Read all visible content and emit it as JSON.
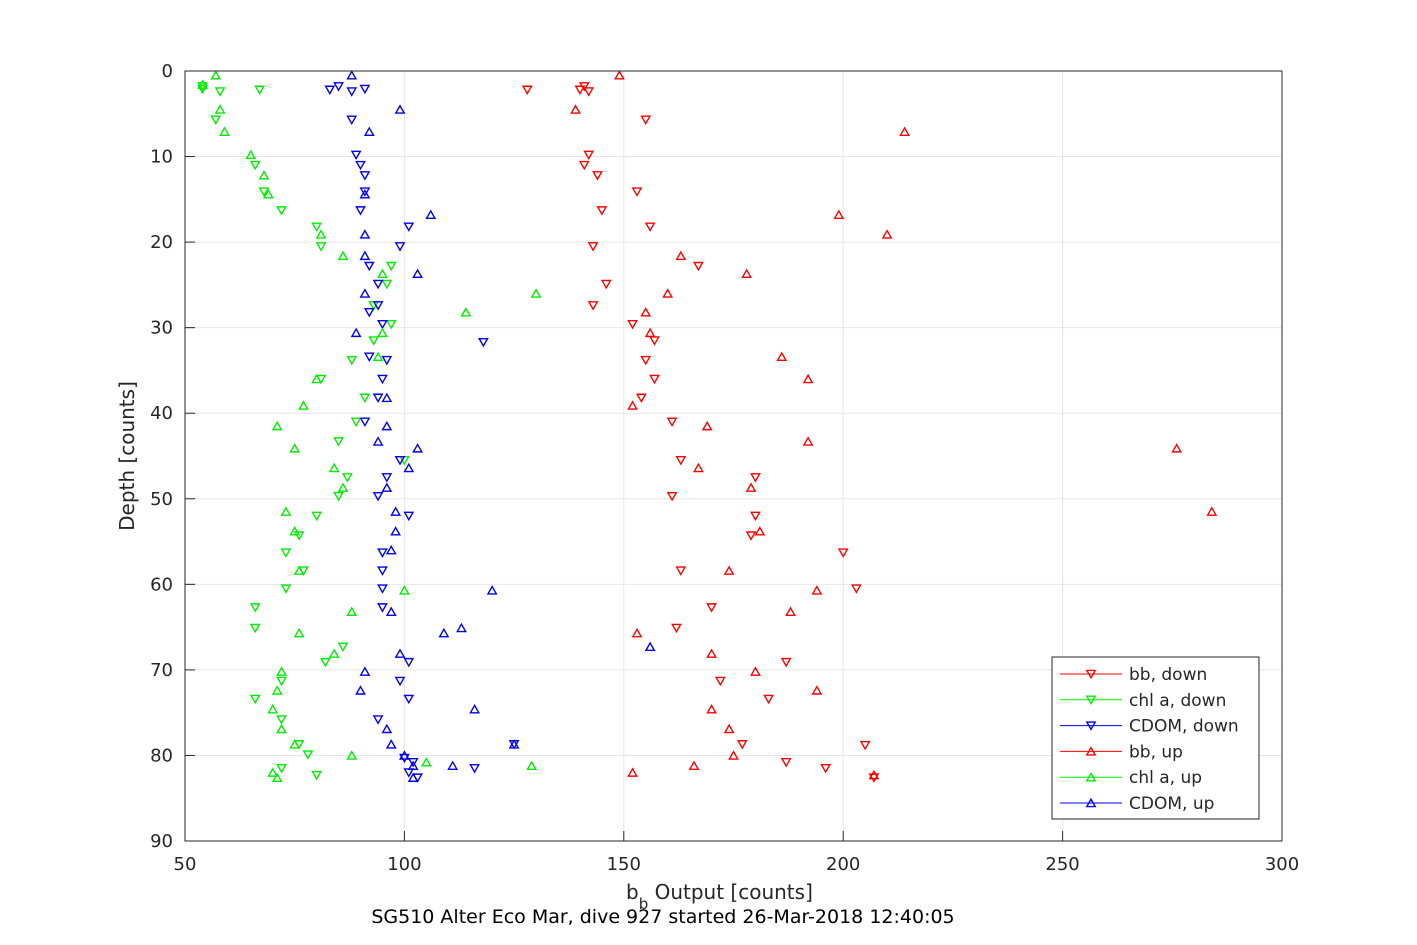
{
  "chart_data": {
    "type": "scatter",
    "title": "",
    "xlabel_main": "b",
    "xlabel_sub": "b",
    "xlabel_rest": " Output [counts]",
    "ylabel": "Depth [counts]",
    "caption": "SG510 Alter Eco Mar, dive 927 started 26-Mar-2018 12:40:05",
    "xlim": [
      50,
      300
    ],
    "ylim": [
      0,
      90
    ],
    "y_reversed": true,
    "grid": true,
    "legend_position": "bottom-right",
    "x_ticks": [
      50,
      100,
      150,
      200,
      250,
      300
    ],
    "y_ticks": [
      0,
      10,
      20,
      30,
      40,
      50,
      60,
      70,
      80,
      90
    ],
    "series": [
      {
        "name": "bb, down",
        "color": "#ff0000",
        "marker": "triangle-down",
        "points": [
          [
            141,
            1.8
          ],
          [
            128,
            2.2
          ],
          [
            142,
            2.4
          ],
          [
            140,
            2.2
          ],
          [
            155,
            5.7
          ],
          [
            142,
            9.8
          ],
          [
            141,
            11.0
          ],
          [
            144,
            12.2
          ],
          [
            153,
            14.1
          ],
          [
            145,
            16.3
          ],
          [
            156,
            18.2
          ],
          [
            143,
            20.5
          ],
          [
            167,
            22.8
          ],
          [
            146,
            24.9
          ],
          [
            143,
            27.4
          ],
          [
            152,
            29.6
          ],
          [
            157,
            31.5
          ],
          [
            155,
            33.8
          ],
          [
            157,
            36.0
          ],
          [
            154,
            38.2
          ],
          [
            161,
            41.0
          ],
          [
            163,
            45.5
          ],
          [
            180,
            47.5
          ],
          [
            161,
            49.7
          ],
          [
            180,
            52.0
          ],
          [
            179,
            54.3
          ],
          [
            200,
            56.3
          ],
          [
            163,
            58.4
          ],
          [
            203,
            60.5
          ],
          [
            170,
            62.7
          ],
          [
            162,
            65.1
          ],
          [
            187,
            69.1
          ],
          [
            172,
            71.3
          ],
          [
            183,
            73.4
          ],
          [
            177,
            78.7
          ],
          [
            205,
            78.8
          ],
          [
            187,
            80.8
          ],
          [
            196,
            81.5
          ],
          [
            207,
            82.6
          ]
        ]
      },
      {
        "name": "chl a, down",
        "color": "#00ee00",
        "marker": "triangle-down",
        "points": [
          [
            54,
            1.8
          ],
          [
            67,
            2.2
          ],
          [
            58,
            2.4
          ],
          [
            54,
            2.1
          ],
          [
            57,
            5.7
          ],
          [
            66,
            11.0
          ],
          [
            68,
            14.1
          ],
          [
            72,
            16.3
          ],
          [
            80,
            18.2
          ],
          [
            81,
            20.5
          ],
          [
            97,
            22.8
          ],
          [
            96,
            24.9
          ],
          [
            93,
            27.4
          ],
          [
            97,
            29.6
          ],
          [
            93,
            31.5
          ],
          [
            88,
            33.8
          ],
          [
            81,
            36.0
          ],
          [
            91,
            38.2
          ],
          [
            89,
            41.0
          ],
          [
            85,
            43.3
          ],
          [
            100,
            45.5
          ],
          [
            87,
            47.5
          ],
          [
            85,
            49.7
          ],
          [
            80,
            52.0
          ],
          [
            76,
            54.3
          ],
          [
            73,
            56.3
          ],
          [
            77,
            58.4
          ],
          [
            73,
            60.5
          ],
          [
            66,
            62.7
          ],
          [
            66,
            65.1
          ],
          [
            86,
            67.3
          ],
          [
            82,
            69.1
          ],
          [
            72,
            71.3
          ],
          [
            66,
            73.4
          ],
          [
            72,
            75.8
          ],
          [
            76,
            78.7
          ],
          [
            78,
            79.9
          ],
          [
            72,
            81.5
          ],
          [
            80,
            82.3
          ]
        ]
      },
      {
        "name": "CDOM, down",
        "color": "#0000ee",
        "marker": "triangle-down",
        "points": [
          [
            83,
            2.2
          ],
          [
            88,
            2.4
          ],
          [
            85,
            1.8
          ],
          [
            91,
            2.1
          ],
          [
            88,
            5.7
          ],
          [
            89,
            9.8
          ],
          [
            90,
            11.0
          ],
          [
            91,
            12.2
          ],
          [
            91,
            14.1
          ],
          [
            90,
            16.3
          ],
          [
            101,
            18.2
          ],
          [
            99,
            20.5
          ],
          [
            92,
            22.8
          ],
          [
            94,
            24.9
          ],
          [
            94,
            27.4
          ],
          [
            95,
            29.6
          ],
          [
            92,
            28.2
          ],
          [
            92,
            33.4
          ],
          [
            96,
            33.8
          ],
          [
            95,
            36.0
          ],
          [
            94,
            38.2
          ],
          [
            91,
            41.0
          ],
          [
            99,
            45.5
          ],
          [
            96,
            47.5
          ],
          [
            94,
            49.7
          ],
          [
            101,
            52.0
          ],
          [
            95,
            56.3
          ],
          [
            95,
            58.4
          ],
          [
            95,
            60.5
          ],
          [
            95,
            62.7
          ],
          [
            118,
            31.7
          ],
          [
            101,
            69.1
          ],
          [
            99,
            71.3
          ],
          [
            101,
            73.4
          ],
          [
            94,
            75.8
          ],
          [
            125,
            78.7
          ],
          [
            100,
            80.3
          ],
          [
            102,
            80.8
          ],
          [
            103,
            82.6
          ],
          [
            116,
            81.5
          ],
          [
            101,
            82.0
          ]
        ]
      },
      {
        "name": "bb, up",
        "color": "#ff0000",
        "marker": "triangle-up",
        "points": [
          [
            149,
            0.5
          ],
          [
            139,
            4.5
          ],
          [
            214,
            7.1
          ],
          [
            199,
            16.8
          ],
          [
            210,
            19.1
          ],
          [
            163,
            21.6
          ],
          [
            178,
            23.7
          ],
          [
            160,
            26.0
          ],
          [
            155,
            28.2
          ],
          [
            156,
            30.6
          ],
          [
            186,
            33.4
          ],
          [
            192,
            36.0
          ],
          [
            152,
            39.1
          ],
          [
            169,
            41.5
          ],
          [
            192,
            43.3
          ],
          [
            276,
            44.1
          ],
          [
            167,
            46.4
          ],
          [
            179,
            48.7
          ],
          [
            284,
            51.5
          ],
          [
            181,
            53.8
          ],
          [
            174,
            58.4
          ],
          [
            194,
            60.7
          ],
          [
            188,
            63.2
          ],
          [
            153,
            65.7
          ],
          [
            170,
            68.1
          ],
          [
            180,
            70.2
          ],
          [
            194,
            72.4
          ],
          [
            170,
            74.6
          ],
          [
            174,
            76.9
          ],
          [
            175,
            80.0
          ],
          [
            166,
            81.2
          ],
          [
            152,
            82.0
          ],
          [
            207,
            82.3
          ]
        ]
      },
      {
        "name": "chl a, up",
        "color": "#00ee00",
        "marker": "triangle-up",
        "points": [
          [
            57,
            0.5
          ],
          [
            54,
            1.6
          ],
          [
            58,
            4.5
          ],
          [
            59,
            7.1
          ],
          [
            65,
            9.8
          ],
          [
            68,
            12.2
          ],
          [
            69,
            14.4
          ],
          [
            81,
            19.1
          ],
          [
            86,
            21.6
          ],
          [
            95,
            23.7
          ],
          [
            130,
            26.0
          ],
          [
            114,
            28.2
          ],
          [
            95,
            30.6
          ],
          [
            94,
            33.4
          ],
          [
            80,
            36.0
          ],
          [
            77,
            39.1
          ],
          [
            71,
            41.5
          ],
          [
            75,
            44.1
          ],
          [
            84,
            46.4
          ],
          [
            86,
            48.7
          ],
          [
            73,
            51.5
          ],
          [
            75,
            53.8
          ],
          [
            76,
            58.4
          ],
          [
            100,
            60.7
          ],
          [
            88,
            63.2
          ],
          [
            76,
            65.7
          ],
          [
            84,
            68.1
          ],
          [
            72,
            70.2
          ],
          [
            71,
            72.4
          ],
          [
            70,
            74.6
          ],
          [
            72,
            76.9
          ],
          [
            75,
            78.7
          ],
          [
            88,
            80.0
          ],
          [
            105,
            80.8
          ],
          [
            129,
            81.2
          ],
          [
            70,
            82.0
          ],
          [
            71,
            82.6
          ]
        ]
      },
      {
        "name": "CDOM, up",
        "color": "#0000ee",
        "marker": "triangle-up",
        "points": [
          [
            88,
            0.5
          ],
          [
            99,
            4.5
          ],
          [
            92,
            7.1
          ],
          [
            91,
            14.4
          ],
          [
            106,
            16.8
          ],
          [
            91,
            19.1
          ],
          [
            91,
            21.6
          ],
          [
            103,
            23.7
          ],
          [
            91,
            26.0
          ],
          [
            89,
            30.6
          ],
          [
            96,
            38.2
          ],
          [
            94,
            43.3
          ],
          [
            103,
            44.1
          ],
          [
            96,
            41.5
          ],
          [
            101,
            46.4
          ],
          [
            96,
            48.7
          ],
          [
            98,
            51.5
          ],
          [
            98,
            53.8
          ],
          [
            97,
            56.0
          ],
          [
            120,
            60.7
          ],
          [
            97,
            63.2
          ],
          [
            109,
            65.7
          ],
          [
            113,
            65.1
          ],
          [
            125,
            78.7
          ],
          [
            156,
            67.3
          ],
          [
            99,
            68.1
          ],
          [
            91,
            70.2
          ],
          [
            90,
            72.4
          ],
          [
            116,
            74.6
          ],
          [
            96,
            76.9
          ],
          [
            97,
            78.7
          ],
          [
            100,
            80.0
          ],
          [
            111,
            81.2
          ],
          [
            102,
            81.2
          ],
          [
            102,
            82.6
          ]
        ]
      }
    ]
  }
}
